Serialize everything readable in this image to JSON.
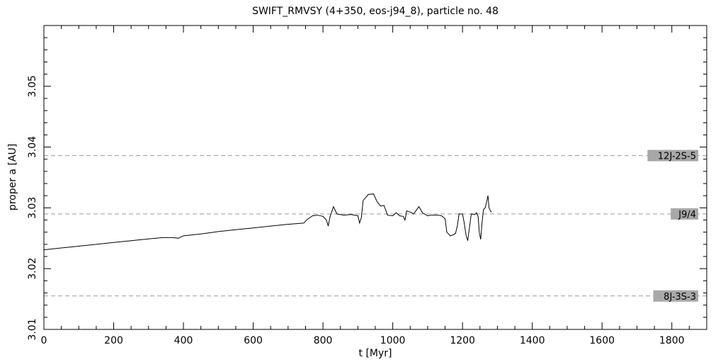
{
  "chart_data": {
    "type": "line",
    "title": "SWIFT_RMVSY (4+350, eos-j94_8), particle no. 48",
    "xlabel": "t [Myr]",
    "ylabel": "proper a [AU]",
    "xlim": [
      0,
      1900
    ],
    "ylim": [
      3.01,
      3.06
    ],
    "x_ticks": [
      0,
      200,
      400,
      600,
      800,
      1000,
      1200,
      1400,
      1600,
      1800
    ],
    "y_ticks": [
      3.01,
      3.02,
      3.03,
      3.04,
      3.05
    ],
    "x_tick_labels": [
      "0",
      "200",
      "400",
      "600",
      "800",
      "1000",
      "1200",
      "1400",
      "1600",
      "1800"
    ],
    "y_tick_labels": [
      "3.01",
      "3.02",
      "3.03",
      "3.04",
      "3.05"
    ],
    "grid": false,
    "resonances": [
      {
        "label": "12J-2S-5",
        "a": 3.0386
      },
      {
        "label": "J9/4",
        "a": 3.029
      },
      {
        "label": "8J-3S-3",
        "a": 3.0155
      }
    ],
    "series": [
      {
        "color": "#000000",
        "points": [
          [
            0,
            3.0231
          ],
          [
            50,
            3.0234
          ],
          [
            100,
            3.0237
          ],
          [
            150,
            3.024
          ],
          [
            200,
            3.0243
          ],
          [
            250,
            3.0246
          ],
          [
            300,
            3.0249
          ],
          [
            340,
            3.0251
          ],
          [
            370,
            3.0251
          ],
          [
            385,
            3.025
          ],
          [
            400,
            3.0254
          ],
          [
            450,
            3.0257
          ],
          [
            500,
            3.0261
          ],
          [
            550,
            3.0264
          ],
          [
            600,
            3.0267
          ],
          [
            650,
            3.027
          ],
          [
            700,
            3.0273
          ],
          [
            745,
            3.0275
          ],
          [
            755,
            3.0281
          ],
          [
            770,
            3.0287
          ],
          [
            785,
            3.0288
          ],
          [
            800,
            3.0286
          ],
          [
            810,
            3.028
          ],
          [
            815,
            3.027
          ],
          [
            820,
            3.0285
          ],
          [
            830,
            3.0302
          ],
          [
            840,
            3.029
          ],
          [
            860,
            3.0288
          ],
          [
            880,
            3.0289
          ],
          [
            900,
            3.0287
          ],
          [
            905,
            3.0275
          ],
          [
            910,
            3.0284
          ],
          [
            915,
            3.0312
          ],
          [
            930,
            3.0322
          ],
          [
            945,
            3.0323
          ],
          [
            955,
            3.031
          ],
          [
            965,
            3.0303
          ],
          [
            975,
            3.0304
          ],
          [
            985,
            3.0288
          ],
          [
            1000,
            3.0287
          ],
          [
            1010,
            3.0292
          ],
          [
            1020,
            3.0287
          ],
          [
            1030,
            3.0286
          ],
          [
            1035,
            3.028
          ],
          [
            1040,
            3.0295
          ],
          [
            1050,
            3.0293
          ],
          [
            1060,
            3.029
          ],
          [
            1070,
            3.0298
          ],
          [
            1075,
            3.0302
          ],
          [
            1085,
            3.0292
          ],
          [
            1100,
            3.0287
          ],
          [
            1110,
            3.0288
          ],
          [
            1130,
            3.0288
          ],
          [
            1140,
            3.0287
          ],
          [
            1150,
            3.0282
          ],
          [
            1155,
            3.026
          ],
          [
            1165,
            3.0254
          ],
          [
            1175,
            3.0256
          ],
          [
            1180,
            3.0258
          ],
          [
            1185,
            3.027
          ],
          [
            1190,
            3.029
          ],
          [
            1200,
            3.029
          ],
          [
            1205,
            3.0275
          ],
          [
            1210,
            3.0255
          ],
          [
            1215,
            3.0246
          ],
          [
            1220,
            3.0268
          ],
          [
            1225,
            3.029
          ],
          [
            1235,
            3.0289
          ],
          [
            1240,
            3.0292
          ],
          [
            1245,
            3.0285
          ],
          [
            1248,
            3.026
          ],
          [
            1252,
            3.0248
          ],
          [
            1256,
            3.0275
          ],
          [
            1260,
            3.0297
          ],
          [
            1265,
            3.03
          ],
          [
            1270,
            3.0312
          ],
          [
            1273,
            3.032
          ],
          [
            1276,
            3.03
          ],
          [
            1280,
            3.0295
          ],
          [
            1283,
            3.0293
          ]
        ]
      }
    ]
  }
}
